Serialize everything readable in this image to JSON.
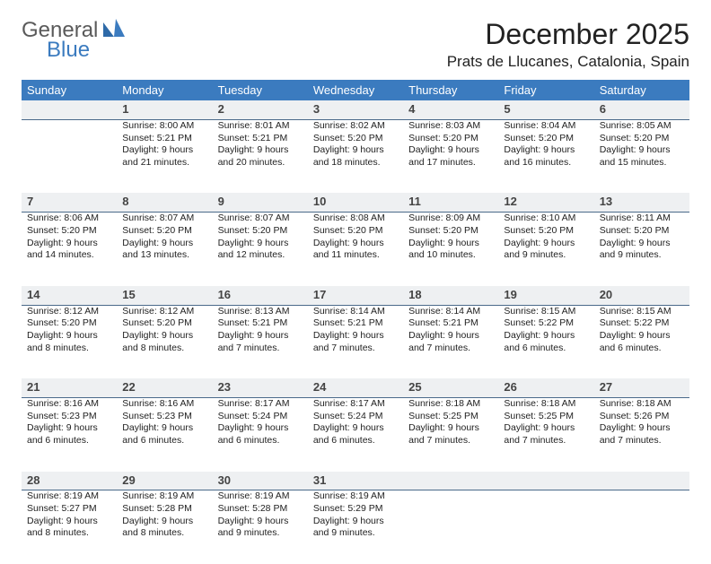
{
  "logo": {
    "text1": "General",
    "text2": "Blue"
  },
  "title": "December 2025",
  "location": "Prats de Llucanes, Catalonia, Spain",
  "colors": {
    "header_bg": "#3b7bbf",
    "header_text": "#ffffff",
    "daynum_bg": "#eef0f2",
    "daynum_border": "#4a6a8a",
    "body_text": "#222222",
    "logo_gray": "#5a5a5a",
    "logo_blue": "#3b7bbf",
    "page_bg": "#ffffff"
  },
  "weekdays": [
    "Sunday",
    "Monday",
    "Tuesday",
    "Wednesday",
    "Thursday",
    "Friday",
    "Saturday"
  ],
  "weeks": [
    [
      null,
      {
        "day": "1",
        "sunrise": "Sunrise: 8:00 AM",
        "sunset": "Sunset: 5:21 PM",
        "daylight": "Daylight: 9 hours and 21 minutes."
      },
      {
        "day": "2",
        "sunrise": "Sunrise: 8:01 AM",
        "sunset": "Sunset: 5:21 PM",
        "daylight": "Daylight: 9 hours and 20 minutes."
      },
      {
        "day": "3",
        "sunrise": "Sunrise: 8:02 AM",
        "sunset": "Sunset: 5:20 PM",
        "daylight": "Daylight: 9 hours and 18 minutes."
      },
      {
        "day": "4",
        "sunrise": "Sunrise: 8:03 AM",
        "sunset": "Sunset: 5:20 PM",
        "daylight": "Daylight: 9 hours and 17 minutes."
      },
      {
        "day": "5",
        "sunrise": "Sunrise: 8:04 AM",
        "sunset": "Sunset: 5:20 PM",
        "daylight": "Daylight: 9 hours and 16 minutes."
      },
      {
        "day": "6",
        "sunrise": "Sunrise: 8:05 AM",
        "sunset": "Sunset: 5:20 PM",
        "daylight": "Daylight: 9 hours and 15 minutes."
      }
    ],
    [
      {
        "day": "7",
        "sunrise": "Sunrise: 8:06 AM",
        "sunset": "Sunset: 5:20 PM",
        "daylight": "Daylight: 9 hours and 14 minutes."
      },
      {
        "day": "8",
        "sunrise": "Sunrise: 8:07 AM",
        "sunset": "Sunset: 5:20 PM",
        "daylight": "Daylight: 9 hours and 13 minutes."
      },
      {
        "day": "9",
        "sunrise": "Sunrise: 8:07 AM",
        "sunset": "Sunset: 5:20 PM",
        "daylight": "Daylight: 9 hours and 12 minutes."
      },
      {
        "day": "10",
        "sunrise": "Sunrise: 8:08 AM",
        "sunset": "Sunset: 5:20 PM",
        "daylight": "Daylight: 9 hours and 11 minutes."
      },
      {
        "day": "11",
        "sunrise": "Sunrise: 8:09 AM",
        "sunset": "Sunset: 5:20 PM",
        "daylight": "Daylight: 9 hours and 10 minutes."
      },
      {
        "day": "12",
        "sunrise": "Sunrise: 8:10 AM",
        "sunset": "Sunset: 5:20 PM",
        "daylight": "Daylight: 9 hours and 9 minutes."
      },
      {
        "day": "13",
        "sunrise": "Sunrise: 8:11 AM",
        "sunset": "Sunset: 5:20 PM",
        "daylight": "Daylight: 9 hours and 9 minutes."
      }
    ],
    [
      {
        "day": "14",
        "sunrise": "Sunrise: 8:12 AM",
        "sunset": "Sunset: 5:20 PM",
        "daylight": "Daylight: 9 hours and 8 minutes."
      },
      {
        "day": "15",
        "sunrise": "Sunrise: 8:12 AM",
        "sunset": "Sunset: 5:20 PM",
        "daylight": "Daylight: 9 hours and 8 minutes."
      },
      {
        "day": "16",
        "sunrise": "Sunrise: 8:13 AM",
        "sunset": "Sunset: 5:21 PM",
        "daylight": "Daylight: 9 hours and 7 minutes."
      },
      {
        "day": "17",
        "sunrise": "Sunrise: 8:14 AM",
        "sunset": "Sunset: 5:21 PM",
        "daylight": "Daylight: 9 hours and 7 minutes."
      },
      {
        "day": "18",
        "sunrise": "Sunrise: 8:14 AM",
        "sunset": "Sunset: 5:21 PM",
        "daylight": "Daylight: 9 hours and 7 minutes."
      },
      {
        "day": "19",
        "sunrise": "Sunrise: 8:15 AM",
        "sunset": "Sunset: 5:22 PM",
        "daylight": "Daylight: 9 hours and 6 minutes."
      },
      {
        "day": "20",
        "sunrise": "Sunrise: 8:15 AM",
        "sunset": "Sunset: 5:22 PM",
        "daylight": "Daylight: 9 hours and 6 minutes."
      }
    ],
    [
      {
        "day": "21",
        "sunrise": "Sunrise: 8:16 AM",
        "sunset": "Sunset: 5:23 PM",
        "daylight": "Daylight: 9 hours and 6 minutes."
      },
      {
        "day": "22",
        "sunrise": "Sunrise: 8:16 AM",
        "sunset": "Sunset: 5:23 PM",
        "daylight": "Daylight: 9 hours and 6 minutes."
      },
      {
        "day": "23",
        "sunrise": "Sunrise: 8:17 AM",
        "sunset": "Sunset: 5:24 PM",
        "daylight": "Daylight: 9 hours and 6 minutes."
      },
      {
        "day": "24",
        "sunrise": "Sunrise: 8:17 AM",
        "sunset": "Sunset: 5:24 PM",
        "daylight": "Daylight: 9 hours and 6 minutes."
      },
      {
        "day": "25",
        "sunrise": "Sunrise: 8:18 AM",
        "sunset": "Sunset: 5:25 PM",
        "daylight": "Daylight: 9 hours and 7 minutes."
      },
      {
        "day": "26",
        "sunrise": "Sunrise: 8:18 AM",
        "sunset": "Sunset: 5:25 PM",
        "daylight": "Daylight: 9 hours and 7 minutes."
      },
      {
        "day": "27",
        "sunrise": "Sunrise: 8:18 AM",
        "sunset": "Sunset: 5:26 PM",
        "daylight": "Daylight: 9 hours and 7 minutes."
      }
    ],
    [
      {
        "day": "28",
        "sunrise": "Sunrise: 8:19 AM",
        "sunset": "Sunset: 5:27 PM",
        "daylight": "Daylight: 9 hours and 8 minutes."
      },
      {
        "day": "29",
        "sunrise": "Sunrise: 8:19 AM",
        "sunset": "Sunset: 5:28 PM",
        "daylight": "Daylight: 9 hours and 8 minutes."
      },
      {
        "day": "30",
        "sunrise": "Sunrise: 8:19 AM",
        "sunset": "Sunset: 5:28 PM",
        "daylight": "Daylight: 9 hours and 9 minutes."
      },
      {
        "day": "31",
        "sunrise": "Sunrise: 8:19 AM",
        "sunset": "Sunset: 5:29 PM",
        "daylight": "Daylight: 9 hours and 9 minutes."
      },
      null,
      null,
      null
    ]
  ]
}
